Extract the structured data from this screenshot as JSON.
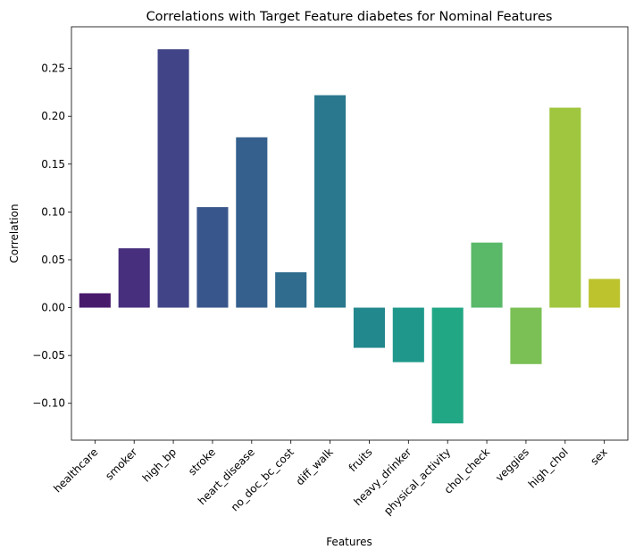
{
  "chart_data": {
    "type": "bar",
    "title": "Correlations with Target Feature diabetes for Nominal Features",
    "xlabel": "Features",
    "ylabel": "Correlation",
    "categories": [
      "healthcare",
      "smoker",
      "high_bp",
      "stroke",
      "heart_disease",
      "no_doc_bc_cost",
      "diff_walk",
      "fruits",
      "heavy_drinker",
      "physical_activity",
      "chol_check",
      "veggies",
      "high_chol",
      "sex"
    ],
    "values": [
      0.015,
      0.062,
      0.27,
      0.105,
      0.178,
      0.037,
      0.222,
      -0.042,
      -0.057,
      -0.121,
      0.068,
      -0.059,
      0.209,
      0.03
    ],
    "colors": [
      "#481a6c",
      "#472f7d",
      "#414487",
      "#39568c",
      "#35608d",
      "#2f6c8e",
      "#2a788e",
      "#23888e",
      "#1f988b",
      "#22a785",
      "#5ab969",
      "#7ac054",
      "#a0c63f",
      "#bcc32d"
    ],
    "ylim": [
      -0.1385,
      0.2935
    ],
    "yticks": [
      -0.1,
      -0.05,
      0.0,
      0.05,
      0.1,
      0.15,
      0.2,
      0.25
    ],
    "ytick_labels": [
      "−0.10",
      "−0.05",
      "0.00",
      "0.05",
      "0.10",
      "0.15",
      "0.20",
      "0.25"
    ],
    "grid": false,
    "legend": "none"
  }
}
